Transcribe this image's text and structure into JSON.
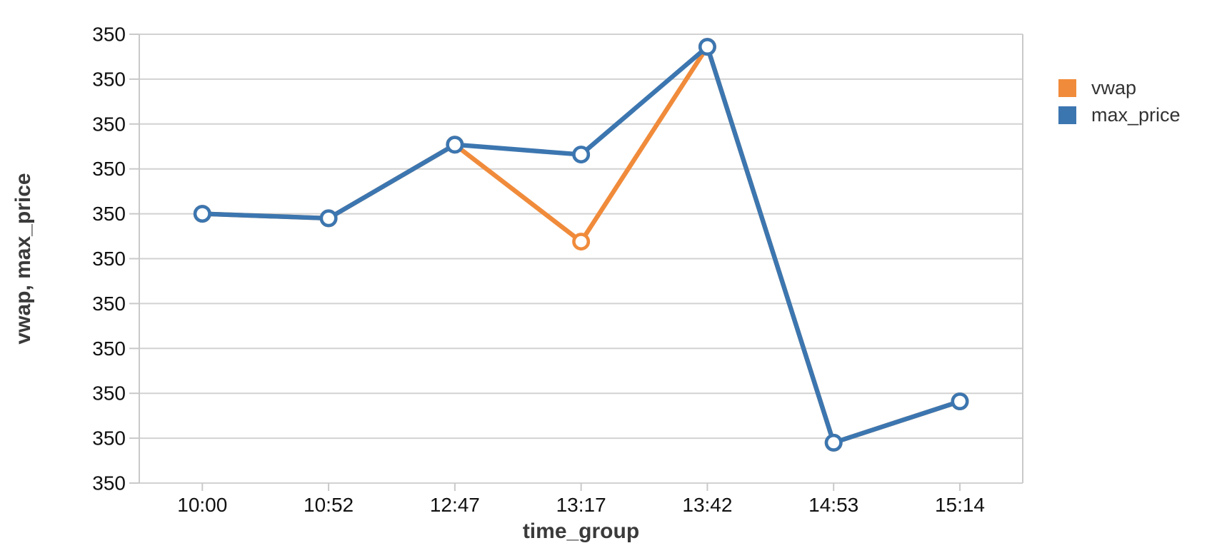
{
  "chart_data": {
    "type": "line",
    "x": [
      "10:00",
      "10:52",
      "12:47",
      "13:17",
      "13:42",
      "14:53",
      "15:14"
    ],
    "xlabel": "time_group",
    "ylabel": "vwap, max_price",
    "series": [
      {
        "name": "vwap",
        "color": "#F08B3B",
        "values": [
          350.05,
          350.045,
          350.127,
          350.019,
          350.236,
          349.795,
          349.841
        ]
      },
      {
        "name": "max_price",
        "color": "#3C76B0",
        "values": [
          350.05,
          350.045,
          350.127,
          350.116,
          350.236,
          349.795,
          349.841
        ]
      }
    ],
    "y_axis": {
      "min": 349.75,
      "max": 350.25,
      "tick_labels": [
        "350",
        "350",
        "350",
        "350",
        "350",
        "350",
        "350",
        "350",
        "350",
        "350",
        "350"
      ]
    },
    "legend": {
      "position": "right",
      "entries": [
        "vwap",
        "max_price"
      ]
    },
    "grid": true,
    "marker": "open-circle",
    "colors": {
      "grid": "#D2D2D2",
      "axis": "#C9C9C9",
      "tick_label": "#111111",
      "axis_title": "#3A3A3A",
      "legend_text": "#333333",
      "marker_fill": "#FFFFFF"
    }
  }
}
